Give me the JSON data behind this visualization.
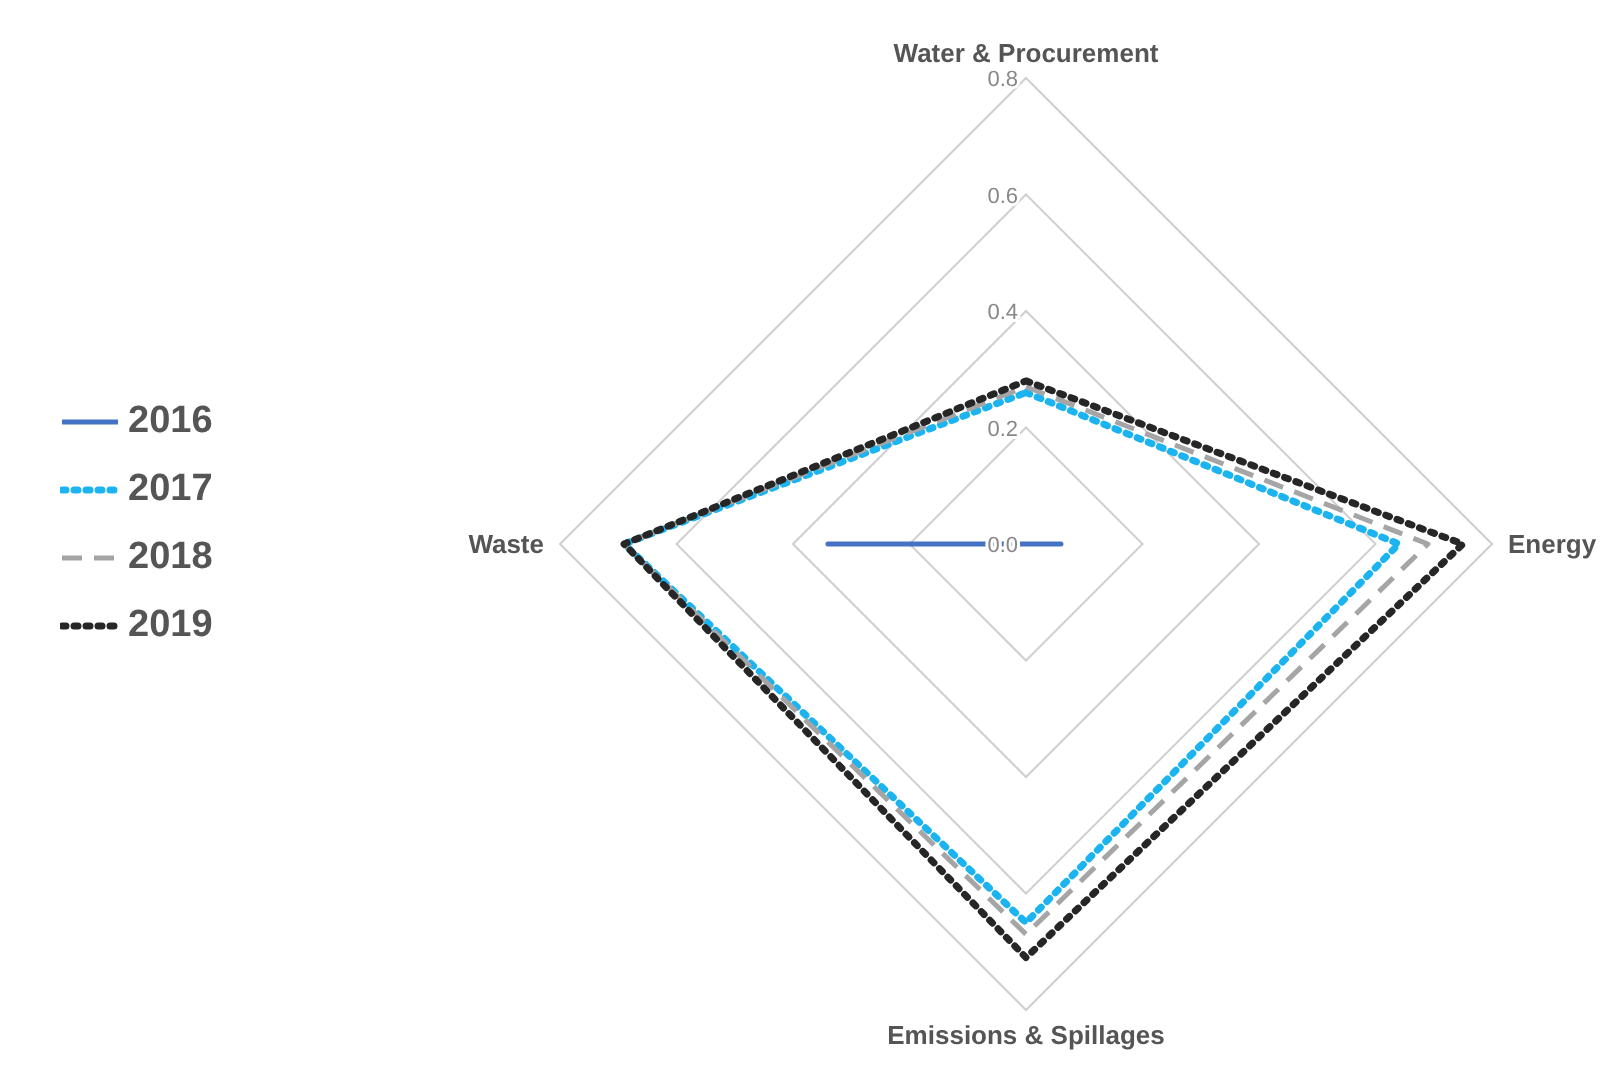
{
  "chart_data": {
    "type": "radar",
    "categories": [
      "Water & Procurement",
      "Energy",
      "Emissions & Spillages",
      "Waste"
    ],
    "series": [
      {
        "name": "2016",
        "color": "#4472c4",
        "line_style": "solid",
        "values": [
          0,
          0.06,
          0,
          0.34
        ]
      },
      {
        "name": "2017",
        "color": "#1cb4f0",
        "line_style": "dotted",
        "values": [
          0.26,
          0.64,
          0.65,
          0.69
        ]
      },
      {
        "name": "2018",
        "color": "#a5a5a5",
        "line_style": "dashed",
        "values": [
          0.27,
          0.69,
          0.67,
          0.69
        ]
      },
      {
        "name": "2019",
        "color": "#262626",
        "line_style": "dotted",
        "values": [
          0.28,
          0.75,
          0.71,
          0.69
        ]
      }
    ],
    "ylim": [
      0,
      0.8
    ],
    "yticks": [
      {
        "value": 0,
        "label": "0.0"
      },
      {
        "value": 0.2,
        "label": "0.2"
      },
      {
        "value": 0.4,
        "label": "0.4"
      },
      {
        "value": 0.6,
        "label": "0.6"
      },
      {
        "value": 0.8,
        "label": "0.8"
      }
    ],
    "grid": true,
    "legend": "left",
    "marker": "none"
  }
}
